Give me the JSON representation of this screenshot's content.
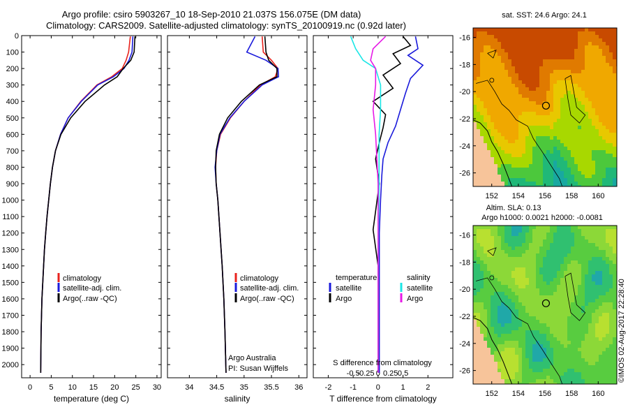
{
  "figure": {
    "title_line1": "Argo profile: csiro 5903267_10 18-Sep-2010 21.037S 156.075E (DM data)",
    "title_line2": "Climatology: CARS2009. Satellite-adjusted climatology: synTS_20100919.nc (0.92d later)",
    "watermark": "©IMOS 02-Aug-2017 22:28:40"
  },
  "colors": {
    "climatology": "#e8221c",
    "satellite": "#1a1adb",
    "argo": "#000000",
    "salinity_satellite": "#19e6e6",
    "salinity_argo": "#e619e6",
    "land": "#f7c49a"
  },
  "chart_data": [
    {
      "type": "line",
      "name": "temperature",
      "xlabel": "temperature (deg C)",
      "ylabel": "",
      "xlim": [
        -2,
        31
      ],
      "ylim": [
        2080,
        0
      ],
      "xticks": [
        0,
        5,
        10,
        15,
        20,
        25,
        30
      ],
      "yticks": [
        0,
        100,
        200,
        300,
        400,
        500,
        600,
        700,
        800,
        900,
        1000,
        1100,
        1200,
        1300,
        1400,
        1500,
        1600,
        1700,
        1800,
        1900,
        2000
      ],
      "legend": [
        "climatology",
        "satellite-adj. clim.",
        "Argo(..raw -QC)"
      ],
      "series": [
        {
          "name": "climatology",
          "color": "#e8221c",
          "x": [
            23.7,
            23.3,
            22.7,
            21.8,
            19.3,
            15.8,
            12.0,
            9.0,
            7.2,
            6.0,
            5.3,
            4.8,
            4.4,
            4.0,
            3.7,
            3.4,
            3.2,
            3.0,
            2.8,
            2.6,
            2.5
          ],
          "y": [
            5,
            100,
            150,
            200,
            250,
            300,
            400,
            500,
            600,
            700,
            800,
            900,
            1000,
            1100,
            1200,
            1300,
            1400,
            1500,
            1600,
            1800,
            2050
          ]
        },
        {
          "name": "satellite-adj. clim.",
          "color": "#1a1adb",
          "x": [
            24.3,
            24.1,
            23.4,
            22.2,
            19.7,
            16.0,
            12.1,
            9.0,
            7.2,
            6.0,
            5.3,
            4.8,
            4.4,
            4.0,
            3.7,
            3.4,
            3.2,
            3.0,
            2.8,
            2.6,
            2.5
          ],
          "y": [
            5,
            100,
            150,
            200,
            250,
            300,
            400,
            500,
            600,
            700,
            800,
            900,
            1000,
            1100,
            1200,
            1300,
            1400,
            1500,
            1600,
            1800,
            2050
          ]
        },
        {
          "name": "Argo(..raw -QC)",
          "color": "#000000",
          "x": [
            24.8,
            24.6,
            23.8,
            22.0,
            20.6,
            17.6,
            13.0,
            9.6,
            7.3,
            6.0,
            5.3,
            4.8,
            4.4,
            4.0,
            3.7,
            3.4,
            3.2,
            3.0,
            2.8,
            2.6,
            2.5
          ],
          "y": [
            5,
            100,
            150,
            200,
            250,
            300,
            400,
            500,
            600,
            700,
            800,
            900,
            1000,
            1100,
            1200,
            1300,
            1400,
            1500,
            1600,
            1800,
            2050
          ]
        }
      ]
    },
    {
      "type": "line",
      "name": "salinity",
      "xlabel": "salinity",
      "ylabel": "",
      "xlim": [
        33.6,
        36.15
      ],
      "ylim": [
        2080,
        0
      ],
      "xticks": [
        34,
        34.5,
        35,
        35.5,
        36
      ],
      "legend": [
        "climatology",
        "satellite-adj. clim.",
        "Argo(..raw -QC)"
      ],
      "annotation_line1": "Argo Australia",
      "annotation_line2": "PI: Susan Wijffels",
      "series": [
        {
          "name": "climatology",
          "color": "#e8221c",
          "x": [
            35.33,
            35.35,
            35.5,
            35.62,
            35.57,
            35.3,
            35.0,
            34.75,
            34.57,
            34.5,
            34.48,
            34.49,
            34.52,
            34.56,
            34.6,
            34.63,
            34.65,
            34.67
          ],
          "y": [
            5,
            100,
            150,
            200,
            250,
            300,
            400,
            500,
            600,
            700,
            800,
            900,
            1000,
            1200,
            1400,
            1600,
            1800,
            2050
          ]
        },
        {
          "name": "satellite-adj. clim.",
          "color": "#1a1adb",
          "x": [
            35.2,
            35.05,
            35.4,
            35.62,
            35.63,
            35.33,
            35.0,
            34.74,
            34.56,
            34.5,
            34.47,
            34.49,
            34.52,
            34.56,
            34.6,
            34.63,
            34.65,
            34.67
          ],
          "y": [
            5,
            100,
            150,
            200,
            250,
            300,
            400,
            500,
            600,
            700,
            800,
            900,
            1000,
            1200,
            1400,
            1600,
            1800,
            2050
          ]
        },
        {
          "name": "Argo(..raw -QC)",
          "color": "#000000",
          "x": [
            35.38,
            35.4,
            35.45,
            35.6,
            35.6,
            35.28,
            34.95,
            34.7,
            34.55,
            34.49,
            34.48,
            34.49,
            34.52,
            34.56,
            34.6,
            34.63,
            34.65,
            34.67
          ],
          "y": [
            5,
            100,
            150,
            200,
            250,
            300,
            400,
            500,
            600,
            700,
            800,
            900,
            1000,
            1200,
            1400,
            1600,
            1800,
            2050
          ]
        }
      ]
    },
    {
      "type": "line",
      "name": "difference from climatology",
      "xlabel": "T difference from climatology",
      "top_label": "S difference from climatology",
      "xlim": [
        -2.6,
        3.0
      ],
      "ylim": [
        2080,
        0
      ],
      "xticks": [
        -2,
        -1,
        0,
        1,
        2
      ],
      "s_ticks": [
        -0.5,
        -0.25,
        0,
        0.25,
        0.5
      ],
      "s_tick_labels": [
        "-0.5",
        "-0.25",
        "0",
        "0.25",
        "0.5"
      ],
      "legend_left_title": "temperature",
      "legend_right_title": "salinity",
      "legend_left": [
        "satellite",
        "Argo"
      ],
      "legend_right": [
        "satellite",
        "Argo"
      ],
      "series": [
        {
          "name": "temperature satellite",
          "color": "#1a1adb",
          "x": [
            1.5,
            1.6,
            1.2,
            1.8,
            1.3,
            1.1,
            0.9,
            0.7,
            0.4,
            0.2,
            0.15,
            0.1,
            0.05,
            0.05,
            0.05,
            0.05,
            0.05
          ],
          "y": [
            5,
            80,
            120,
            180,
            260,
            350,
            450,
            550,
            650,
            750,
            850,
            1000,
            1200,
            1400,
            1600,
            1800,
            2050
          ]
        },
        {
          "name": "temperature Argo",
          "color": "#000000",
          "x": [
            1.0,
            1.3,
            0.6,
            0.9,
            0.2,
            0.6,
            -0.2,
            0.3,
            0.2,
            0.05,
            -0.1,
            0.05,
            -0.2,
            0.0,
            0.0,
            0.0,
            0.0
          ],
          "y": [
            5,
            60,
            110,
            170,
            240,
            320,
            400,
            480,
            560,
            650,
            750,
            900,
            1180,
            1400,
            1600,
            1800,
            2050
          ]
        },
        {
          "name": "salinity satellite",
          "color": "#19e6e6",
          "x": [
            -0.55,
            -0.45,
            -0.3,
            -0.05,
            0.05,
            0.05,
            0.02,
            0.02,
            0.0,
            0.0,
            0.0
          ],
          "y": [
            5,
            80,
            150,
            200,
            300,
            450,
            600,
            900,
            1300,
            1700,
            2050
          ]
        },
        {
          "name": "salinity Argo",
          "color": "#e619e6",
          "x": [
            0.15,
            -0.1,
            -0.15,
            -0.05,
            -0.05,
            -0.1,
            -0.05,
            0.0,
            0.0,
            0.0,
            0.0
          ],
          "y": [
            5,
            80,
            150,
            200,
            300,
            450,
            600,
            900,
            1300,
            1700,
            2050
          ]
        }
      ]
    },
    {
      "type": "heatmap",
      "name": "SST map",
      "title": "sat. SST: 24.6  Argo: 24.1",
      "xlim": [
        150.6,
        161.4
      ],
      "ylim": [
        -27,
        -15.3
      ],
      "xticks": [
        152,
        154,
        156,
        158,
        160
      ],
      "yticks": [
        -16,
        -18,
        -20,
        -22,
        -24,
        -26
      ],
      "palette": [
        "#c84a00",
        "#e07a00",
        "#f0a800",
        "#e8c800",
        "#a8d800",
        "#4cc83c",
        "#20b878",
        "#18a8a0"
      ],
      "marker": {
        "lon": 156.075,
        "lat": -21.037
      }
    },
    {
      "type": "heatmap",
      "name": "SLA map",
      "title_line1": "Altim. SLA: 0.13",
      "title_line2": "Argo h1000: 0.0021 h2000: -0.0081",
      "xlim": [
        150.6,
        161.4
      ],
      "ylim": [
        -27,
        -15.3
      ],
      "xticks": [
        152,
        154,
        156,
        158,
        160
      ],
      "yticks": [
        -16,
        -18,
        -20,
        -22,
        -24,
        -26
      ],
      "palette": [
        "#20a8a8",
        "#30c070",
        "#58cc40",
        "#8cd838",
        "#b8e030",
        "#d8e030"
      ],
      "marker": {
        "lon": 156.075,
        "lat": -21.037
      }
    }
  ]
}
